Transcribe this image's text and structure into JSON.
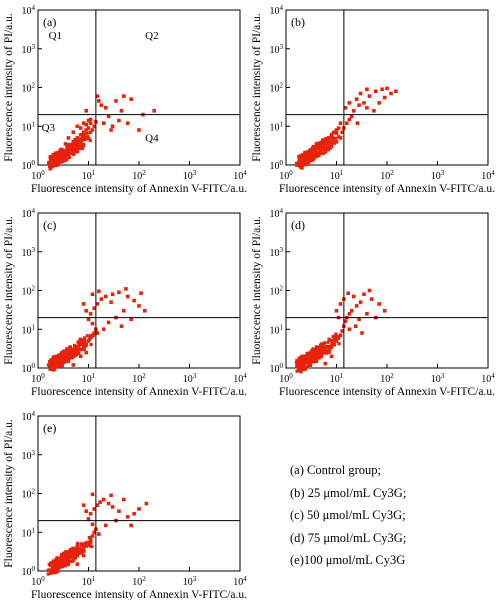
{
  "chart_data": [
    {
      "type": "scatter",
      "panel_label": "(a)",
      "xlabel": "Fluorescence intensity of Annexin V-FITC/a.u.",
      "ylabel": "Fluorescence intensity of PI/a.u.",
      "x_scale": "log",
      "y_scale": "log",
      "xlim": [
        1,
        10000
      ],
      "ylim": [
        1,
        10000
      ],
      "x_tick_labels": [
        "10^0",
        "10^1",
        "10^2",
        "10^3",
        "10^4"
      ],
      "y_tick_labels": [
        "10^0",
        "10^1",
        "10^2",
        "10^3",
        "10^4"
      ],
      "gate": {
        "x": 14,
        "y": 20
      },
      "quadrant_labels": [
        {
          "text": "Q1",
          "x": 2.2,
          "y": 1800
        },
        {
          "text": "Q2",
          "x": 180,
          "y": 1800
        },
        {
          "text": "Q3",
          "x": 1.6,
          "y": 7.5
        },
        {
          "text": "Q4",
          "x": 180,
          "y": 4
        }
      ],
      "color": "#e8230b",
      "points_density": "most events low-low in Q3; few events in Q2/Q4",
      "points": [
        [
          4,
          3
        ],
        [
          5,
          4
        ],
        [
          6,
          5
        ],
        [
          7,
          6
        ],
        [
          8,
          7
        ],
        [
          9,
          8
        ],
        [
          10,
          9
        ],
        [
          6,
          3
        ],
        [
          8,
          5
        ],
        [
          4,
          5
        ],
        [
          5,
          7
        ],
        [
          7,
          9
        ],
        [
          9,
          11
        ],
        [
          11,
          12
        ],
        [
          3,
          2
        ],
        [
          3.5,
          3.5
        ],
        [
          12,
          8
        ],
        [
          10,
          14
        ],
        [
          8,
          12
        ],
        [
          6,
          10
        ],
        [
          13,
          10
        ],
        [
          14,
          13
        ],
        [
          11,
          15
        ],
        [
          20,
          12
        ],
        [
          25,
          18
        ],
        [
          30,
          10
        ],
        [
          40,
          14
        ],
        [
          22,
          30
        ],
        [
          35,
          45
        ],
        [
          50,
          60
        ],
        [
          70,
          50
        ],
        [
          18,
          35
        ],
        [
          15,
          60
        ],
        [
          100,
          8
        ],
        [
          60,
          12
        ],
        [
          120,
          20
        ],
        [
          200,
          25
        ],
        [
          45,
          25
        ],
        [
          9,
          25
        ],
        [
          16,
          45
        ],
        [
          28,
          8
        ]
      ]
    },
    {
      "type": "scatter",
      "panel_label": "(b)",
      "xlabel": "Fluorescence intensity of Annexin V-FITC/a.u.",
      "ylabel": "Fluorescence intensity of PI/a.u.",
      "x_scale": "log",
      "y_scale": "log",
      "xlim": [
        1,
        10000
      ],
      "ylim": [
        1,
        10000
      ],
      "x_tick_labels": [
        "10^0",
        "10^1",
        "10^2",
        "10^3",
        "10^4"
      ],
      "y_tick_labels": [
        "10^0",
        "10^1",
        "10^2",
        "10^3",
        "10^4"
      ],
      "gate": {
        "x": 14,
        "y": 20
      },
      "color": "#e8230b",
      "points": [
        [
          4,
          2
        ],
        [
          5,
          3
        ],
        [
          6,
          4
        ],
        [
          7,
          5
        ],
        [
          8,
          6
        ],
        [
          9,
          7
        ],
        [
          10,
          8
        ],
        [
          11,
          9
        ],
        [
          6,
          2.5
        ],
        [
          8,
          3
        ],
        [
          10,
          4
        ],
        [
          12,
          5
        ],
        [
          3,
          1.8
        ],
        [
          4,
          3.5
        ],
        [
          13,
          7
        ],
        [
          14,
          9
        ],
        [
          16,
          12
        ],
        [
          18,
          15
        ],
        [
          20,
          18
        ],
        [
          22,
          25
        ],
        [
          28,
          35
        ],
        [
          35,
          40
        ],
        [
          45,
          60
        ],
        [
          60,
          80
        ],
        [
          80,
          90
        ],
        [
          100,
          95
        ],
        [
          120,
          70
        ],
        [
          25,
          50
        ],
        [
          30,
          70
        ],
        [
          40,
          30
        ],
        [
          55,
          25
        ],
        [
          70,
          40
        ],
        [
          18,
          40
        ],
        [
          15,
          30
        ],
        [
          12,
          12
        ],
        [
          90,
          55
        ],
        [
          150,
          80
        ],
        [
          26,
          12
        ],
        [
          40,
          90
        ]
      ]
    },
    {
      "type": "scatter",
      "panel_label": "(c)",
      "xlabel": "Fluorescence intensity of Annexin V-FITC/a.u.",
      "ylabel": "Fluorescence intensity of PI/a.u.",
      "x_scale": "log",
      "y_scale": "log",
      "xlim": [
        1,
        10000
      ],
      "ylim": [
        1,
        10000
      ],
      "x_tick_labels": [
        "10^0",
        "10^1",
        "10^2",
        "10^3",
        "10^4"
      ],
      "y_tick_labels": [
        "10^0",
        "10^1",
        "10^2",
        "10^3",
        "10^4"
      ],
      "gate": {
        "x": 14,
        "y": 20
      },
      "color": "#e8230b",
      "points": [
        [
          4,
          1.5
        ],
        [
          5,
          2
        ],
        [
          6,
          2.5
        ],
        [
          7,
          3
        ],
        [
          8,
          3.5
        ],
        [
          9,
          4
        ],
        [
          10,
          5
        ],
        [
          11,
          6
        ],
        [
          12,
          7
        ],
        [
          13,
          8
        ],
        [
          5,
          1.2
        ],
        [
          7,
          2
        ],
        [
          9,
          2.5
        ],
        [
          3,
          1.3
        ],
        [
          14,
          10
        ],
        [
          12,
          14
        ],
        [
          10,
          18
        ],
        [
          11,
          25
        ],
        [
          13,
          35
        ],
        [
          15,
          45
        ],
        [
          18,
          60
        ],
        [
          22,
          70
        ],
        [
          30,
          80
        ],
        [
          40,
          90
        ],
        [
          60,
          70
        ],
        [
          80,
          55
        ],
        [
          100,
          40
        ],
        [
          130,
          30
        ],
        [
          50,
          30
        ],
        [
          35,
          20
        ],
        [
          25,
          15
        ],
        [
          20,
          10
        ],
        [
          15,
          8
        ],
        [
          45,
          12
        ],
        [
          70,
          18
        ],
        [
          9,
          30
        ],
        [
          8,
          45
        ],
        [
          12,
          80
        ],
        [
          16,
          95
        ],
        [
          28,
          50
        ],
        [
          110,
          85
        ],
        [
          55,
          110
        ]
      ]
    },
    {
      "type": "scatter",
      "panel_label": "(d)",
      "xlabel": "Fluorescence intensity of Annexin V-FITC/a.u.",
      "ylabel": "Fluorescence intensity of PI/a.u.",
      "x_scale": "log",
      "y_scale": "log",
      "xlim": [
        1,
        10000
      ],
      "ylim": [
        1,
        10000
      ],
      "x_tick_labels": [
        "10^0",
        "10^1",
        "10^2",
        "10^3",
        "10^4"
      ],
      "y_tick_labels": [
        "10^0",
        "10^1",
        "10^2",
        "10^3",
        "10^4"
      ],
      "gate": {
        "x": 14,
        "y": 20
      },
      "color": "#e8230b",
      "points": [
        [
          4,
          1.5
        ],
        [
          5,
          2
        ],
        [
          6,
          2.5
        ],
        [
          7,
          3
        ],
        [
          8,
          3.5
        ],
        [
          9,
          4
        ],
        [
          10,
          5
        ],
        [
          11,
          6
        ],
        [
          12,
          7
        ],
        [
          3,
          1.3
        ],
        [
          6,
          1.3
        ],
        [
          8,
          2
        ],
        [
          13,
          9
        ],
        [
          14,
          12
        ],
        [
          15,
          16
        ],
        [
          16,
          20
        ],
        [
          18,
          25
        ],
        [
          20,
          30
        ],
        [
          25,
          40
        ],
        [
          30,
          50
        ],
        [
          14,
          60
        ],
        [
          12,
          45
        ],
        [
          10,
          30
        ],
        [
          22,
          70
        ],
        [
          35,
          80
        ],
        [
          50,
          60
        ],
        [
          70,
          45
        ],
        [
          90,
          30
        ],
        [
          40,
          25
        ],
        [
          28,
          18
        ],
        [
          24,
          12
        ],
        [
          18,
          10
        ],
        [
          60,
          20
        ],
        [
          17,
          85
        ],
        [
          45,
          100
        ],
        [
          11,
          20
        ],
        [
          32,
          8
        ]
      ]
    },
    {
      "type": "scatter",
      "panel_label": "(e)",
      "xlabel": "Fluorescence intensity of Annexin V-FITC/a.u.",
      "ylabel": "Fluorescence intensity of PI/a.u.",
      "x_scale": "log",
      "y_scale": "log",
      "xlim": [
        1,
        10000
      ],
      "ylim": [
        1,
        10000
      ],
      "x_tick_labels": [
        "10^0",
        "10^1",
        "10^2",
        "10^3",
        "10^4"
      ],
      "y_tick_labels": [
        "10^0",
        "10^1",
        "10^2",
        "10^3",
        "10^4"
      ],
      "gate": {
        "x": 14,
        "y": 20
      },
      "color": "#e8230b",
      "points": [
        [
          4,
          1.5
        ],
        [
          5,
          2
        ],
        [
          6,
          2.5
        ],
        [
          7,
          3
        ],
        [
          8,
          3.5
        ],
        [
          9,
          4.5
        ],
        [
          10,
          5.5
        ],
        [
          11,
          6.5
        ],
        [
          12,
          8
        ],
        [
          13,
          10
        ],
        [
          3,
          1.3
        ],
        [
          6,
          1.5
        ],
        [
          8,
          2.5
        ],
        [
          14,
          12
        ],
        [
          12,
          16
        ],
        [
          10,
          22
        ],
        [
          11,
          30
        ],
        [
          13,
          40
        ],
        [
          15,
          50
        ],
        [
          17,
          60
        ],
        [
          20,
          70
        ],
        [
          25,
          55
        ],
        [
          30,
          45
        ],
        [
          40,
          35
        ],
        [
          60,
          25
        ],
        [
          80,
          30
        ],
        [
          100,
          40
        ],
        [
          140,
          55
        ],
        [
          50,
          70
        ],
        [
          35,
          20
        ],
        [
          22,
          15
        ],
        [
          16,
          9
        ],
        [
          9,
          35
        ],
        [
          8,
          50
        ],
        [
          12,
          95
        ],
        [
          28,
          90
        ],
        [
          70,
          15
        ]
      ]
    }
  ],
  "legend": [
    "(a)  Control group;",
    "(b)  25  μmol/mL  Cy3G;",
    "(c)  50  μmol/mL  Cy3G;",
    "(d)  75  μmol/mL  Cy3G;",
    "(e)100  μmol/mL  Cy3G"
  ]
}
